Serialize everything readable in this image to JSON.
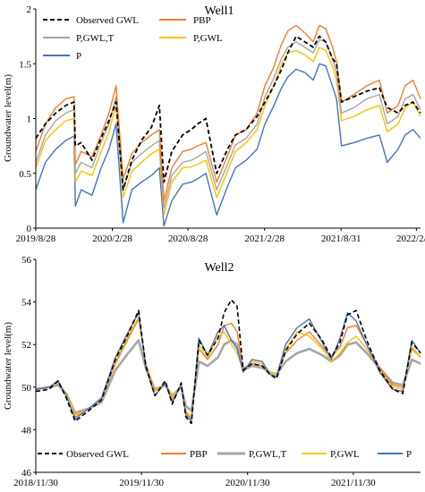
{
  "colors": {
    "observed": "#000000",
    "pbp": "#ED7D31",
    "pgwlt": "#A5A5A5",
    "pgwl": "#FFC000",
    "p": "#4472C4"
  },
  "chart_data": [
    {
      "type": "line",
      "title": "Well1",
      "ylabel": "Groundwater level(m)",
      "xlabel": "",
      "ylim": [
        0,
        2
      ],
      "yticks": [
        "0",
        "0.5",
        "1",
        "1.5",
        "2"
      ],
      "xticks": [
        "2019/8/28",
        "2020/2/28",
        "2020/8/28",
        "2021/2/28",
        "2021/8/31",
        "2022/2/28"
      ],
      "xrange": [
        "2019/8/28",
        "2022/3/10"
      ],
      "grid": false,
      "legend_position": "top-left",
      "x": [
        "2019/8/28",
        "2019/9/20",
        "2019/10/15",
        "2019/11/8",
        "2019/11/28",
        "2019/12/1",
        "2019/12/15",
        "2020/1/10",
        "2020/2/1",
        "2020/2/20",
        "2020/3/8",
        "2020/3/25",
        "2020/4/15",
        "2020/5/8",
        "2020/6/1",
        "2020/6/20",
        "2020/7/1",
        "2020/7/20",
        "2020/8/15",
        "2020/9/5",
        "2020/9/20",
        "2020/10/10",
        "2020/11/5",
        "2020/12/1",
        "2020/12/20",
        "2021/1/15",
        "2021/2/10",
        "2021/3/1",
        "2021/3/20",
        "2021/4/10",
        "2021/4/25",
        "2021/5/15",
        "2021/6/5",
        "2021/6/25",
        "2021/7/10",
        "2021/7/25",
        "2021/8/10",
        "2021/8/20",
        "2021/9/1",
        "2021/10/1",
        "2021/11/1",
        "2021/12/1",
        "2021/12/20",
        "2022/1/15",
        "2022/2/1",
        "2022/2/20",
        "2022/3/10"
      ],
      "series": [
        {
          "name": "Observed GWL",
          "color_key": "observed",
          "dash": true,
          "values": [
            0.82,
            0.95,
            1.05,
            1.12,
            1.15,
            0.75,
            0.78,
            0.62,
            0.82,
            0.98,
            1.15,
            0.35,
            0.62,
            0.8,
            0.92,
            1.12,
            0.42,
            0.7,
            0.85,
            0.9,
            0.95,
            1.0,
            0.5,
            0.72,
            0.85,
            0.9,
            1.02,
            1.15,
            1.28,
            1.45,
            1.6,
            1.75,
            1.7,
            1.65,
            1.75,
            1.7,
            1.55,
            1.5,
            1.15,
            1.2,
            1.25,
            1.28,
            1.1,
            1.05,
            1.12,
            1.15,
            1.05
          ]
        },
        {
          "name": "PBP",
          "color_key": "pbp",
          "dash": false,
          "values": [
            0.7,
            0.95,
            1.1,
            1.18,
            1.2,
            0.58,
            0.7,
            0.65,
            0.85,
            1.05,
            1.3,
            0.45,
            0.68,
            0.78,
            0.85,
            0.9,
            0.25,
            0.55,
            0.7,
            0.72,
            0.75,
            0.78,
            0.42,
            0.66,
            0.85,
            0.9,
            1.05,
            1.3,
            1.45,
            1.68,
            1.8,
            1.85,
            1.78,
            1.7,
            1.85,
            1.82,
            1.66,
            1.52,
            1.15,
            1.22,
            1.3,
            1.35,
            1.05,
            1.12,
            1.3,
            1.35,
            1.18
          ]
        },
        {
          "name": "P,GWL,T",
          "color_key": "pgwlt",
          "dash": false,
          "values": [
            0.6,
            0.85,
            0.98,
            1.05,
            1.08,
            0.5,
            0.6,
            0.55,
            0.78,
            0.95,
            1.2,
            0.35,
            0.6,
            0.68,
            0.75,
            0.8,
            0.18,
            0.48,
            0.6,
            0.62,
            0.65,
            0.7,
            0.35,
            0.58,
            0.76,
            0.82,
            0.95,
            1.2,
            1.35,
            1.55,
            1.65,
            1.7,
            1.65,
            1.6,
            1.72,
            1.7,
            1.55,
            1.42,
            1.05,
            1.1,
            1.18,
            1.22,
            0.95,
            1.02,
            1.18,
            1.22,
            1.08
          ]
        },
        {
          "name": "P,GWL",
          "color_key": "pgwl",
          "dash": false,
          "values": [
            0.55,
            0.8,
            0.9,
            0.98,
            1.0,
            0.42,
            0.52,
            0.48,
            0.7,
            0.88,
            1.12,
            0.28,
            0.52,
            0.6,
            0.68,
            0.72,
            0.12,
            0.42,
            0.55,
            0.56,
            0.58,
            0.62,
            0.28,
            0.52,
            0.7,
            0.78,
            0.9,
            1.12,
            1.28,
            1.5,
            1.6,
            1.62,
            1.58,
            1.52,
            1.65,
            1.62,
            1.48,
            1.35,
            0.98,
            1.02,
            1.08,
            1.12,
            0.88,
            0.95,
            1.1,
            1.15,
            1.02
          ]
        },
        {
          "name": "P",
          "color_key": "p",
          "dash": false,
          "values": [
            0.35,
            0.6,
            0.72,
            0.8,
            0.84,
            0.2,
            0.35,
            0.3,
            0.55,
            0.72,
            0.95,
            0.05,
            0.35,
            0.42,
            0.48,
            0.55,
            0.02,
            0.25,
            0.4,
            0.42,
            0.45,
            0.5,
            0.12,
            0.38,
            0.55,
            0.62,
            0.72,
            0.95,
            1.1,
            1.28,
            1.38,
            1.45,
            1.42,
            1.35,
            1.5,
            1.48,
            1.3,
            1.18,
            0.75,
            0.78,
            0.82,
            0.85,
            0.6,
            0.72,
            0.85,
            0.9,
            0.82
          ]
        }
      ]
    },
    {
      "type": "line",
      "title": "Well2",
      "ylabel": "Groundwater level(m)",
      "xlabel": "",
      "ylim": [
        46,
        56
      ],
      "yticks": [
        "46",
        "48",
        "50",
        "52",
        "54",
        "56"
      ],
      "xticks": [
        "2018/11/30",
        "2019/11/30",
        "2020/11/30",
        "2021/11/30"
      ],
      "xrange": [
        "2018/11/30",
        "2022/7/20"
      ],
      "grid": false,
      "legend_position": "bottom",
      "x": [
        "2018/11/30",
        "2019/1/15",
        "2019/2/15",
        "2019/3/15",
        "2019/4/15",
        "2019/6/1",
        "2019/7/15",
        "2019/9/1",
        "2019/10/15",
        "2019/11/20",
        "2019/12/15",
        "2020/1/15",
        "2020/2/20",
        "2020/3/15",
        "2020/4/15",
        "2020/5/1",
        "2020/5/20",
        "2020/6/15",
        "2020/7/15",
        "2020/8/20",
        "2020/9/10",
        "2020/10/5",
        "2020/10/25",
        "2020/11/15",
        "2020/12/15",
        "2021/1/20",
        "2021/2/15",
        "2021/3/10",
        "2021/4/10",
        "2021/5/20",
        "2021/7/1",
        "2021/8/15",
        "2021/9/15",
        "2021/10/15",
        "2021/11/10",
        "2021/12/10",
        "2022/1/15",
        "2022/3/1",
        "2022/4/15",
        "2022/5/20",
        "2022/6/20",
        "2022/7/20"
      ],
      "series": [
        {
          "name": "Observed GWL",
          "color_key": "observed",
          "dash": true,
          "values": [
            49.8,
            49.9,
            50.3,
            49.5,
            48.4,
            48.9,
            49.4,
            51.3,
            52.5,
            53.6,
            51.0,
            49.6,
            50.3,
            49.2,
            50.2,
            48.6,
            48.3,
            52.2,
            51.5,
            52.3,
            53.5,
            54.1,
            53.8,
            50.8,
            51.1,
            51.0,
            50.6,
            50.4,
            51.7,
            52.5,
            53.0,
            52.2,
            51.4,
            52.1,
            53.4,
            53.6,
            52.2,
            50.8,
            49.9,
            49.7,
            52.1,
            51.6
          ]
        },
        {
          "name": "PBP",
          "color_key": "pbp",
          "dash": false,
          "values": [
            49.9,
            50.0,
            50.2,
            49.6,
            48.6,
            49.0,
            49.4,
            51.1,
            52.3,
            53.2,
            51.1,
            49.8,
            50.2,
            49.4,
            50.1,
            48.8,
            48.5,
            51.8,
            51.3,
            52.0,
            52.9,
            53.0,
            52.6,
            50.9,
            51.1,
            51.0,
            50.7,
            50.6,
            51.6,
            52.2,
            52.6,
            51.9,
            51.4,
            51.9,
            52.8,
            52.9,
            52.0,
            50.9,
            50.1,
            50.0,
            51.8,
            51.4
          ]
        },
        {
          "name": "P,GWL,T",
          "color_key": "pgwlt",
          "dash": false,
          "values": [
            49.9,
            50.0,
            50.1,
            49.7,
            48.8,
            49.0,
            49.3,
            50.8,
            51.6,
            52.2,
            50.9,
            49.9,
            50.1,
            49.6,
            50.0,
            49.1,
            48.9,
            51.2,
            51.0,
            51.4,
            52.0,
            52.2,
            52.0,
            50.8,
            51.0,
            50.9,
            50.7,
            50.6,
            51.2,
            51.6,
            51.8,
            51.5,
            51.2,
            51.5,
            52.0,
            52.1,
            51.6,
            50.9,
            50.2,
            50.1,
            51.3,
            51.1
          ]
        },
        {
          "name": "P,GWL",
          "color_key": "pgwl",
          "dash": false,
          "values": [
            49.9,
            50.0,
            50.2,
            49.7,
            48.7,
            49.0,
            49.4,
            51.2,
            52.4,
            53.3,
            51.0,
            49.8,
            50.2,
            49.5,
            50.1,
            48.9,
            48.6,
            52.0,
            51.4,
            52.4,
            52.6,
            52.0,
            51.6,
            50.8,
            51.2,
            51.1,
            50.7,
            50.6,
            51.8,
            52.6,
            52.4,
            51.8,
            51.2,
            51.6,
            52.1,
            52.4,
            51.8,
            50.8,
            50.0,
            49.9,
            51.9,
            51.4
          ]
        },
        {
          "name": "P",
          "color_key": "p",
          "dash": false,
          "values": [
            49.9,
            50.0,
            50.3,
            49.6,
            48.5,
            49.0,
            49.5,
            51.4,
            52.6,
            53.5,
            50.9,
            49.6,
            50.2,
            49.3,
            50.1,
            48.7,
            48.4,
            52.3,
            51.5,
            52.6,
            52.9,
            52.2,
            51.8,
            50.7,
            51.3,
            51.2,
            50.6,
            50.5,
            52.0,
            52.8,
            53.2,
            52.1,
            51.3,
            52.3,
            53.5,
            53.1,
            52.0,
            50.7,
            49.9,
            49.8,
            52.2,
            51.6
          ]
        }
      ]
    }
  ]
}
